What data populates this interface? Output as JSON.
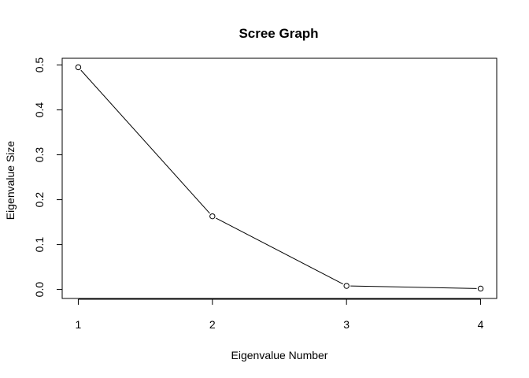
{
  "chart_data": {
    "type": "line",
    "title": "Scree Graph",
    "xlabel": "Eigenvalue Number",
    "ylabel": "Eigenvalue Size",
    "x": [
      1,
      2,
      3,
      4
    ],
    "series": [
      {
        "values": [
          0.495,
          0.163,
          0.008,
          0.002
        ]
      }
    ],
    "xticks": [
      "1",
      "2",
      "3",
      "4"
    ],
    "yticks": [
      "0.0",
      "0.1",
      "0.2",
      "0.3",
      "0.4",
      "0.5"
    ],
    "xlim": [
      0.88,
      4.12
    ],
    "ylim": [
      -0.02,
      0.515
    ],
    "grid": false,
    "legend": "none",
    "marker": "open-circle",
    "colors": {
      "line": "#000000",
      "marker_fill": "#ffffff",
      "background": "#ffffff"
    }
  }
}
